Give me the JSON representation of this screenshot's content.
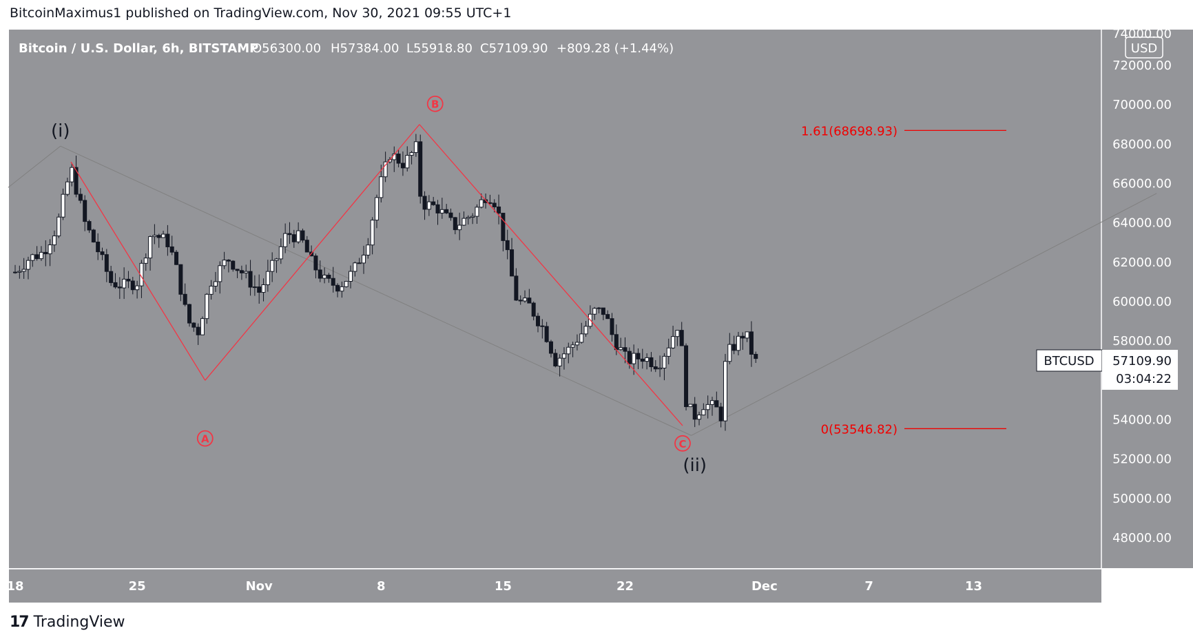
{
  "header": {
    "published": "BitcoinMaximus1 published on TradingView.com, Nov 30, 2021 09:55 UTC+1"
  },
  "footer": {
    "logo_mark": "17",
    "brand": "TradingView"
  },
  "legend": {
    "symbol": "Bitcoin / U.S. Dollar, 6h, BITSTAMP",
    "open": "O56300.00",
    "high": "H57384.00",
    "low": "L55918.80",
    "close": "C57109.90",
    "change": "+809.28 (+1.44%)"
  },
  "price_axis": {
    "currency": "USD",
    "top_label": "74000.00"
  },
  "price_tag": {
    "symbol": "BTCUSD",
    "price": "57109.90",
    "countdown": "03:04:22"
  },
  "colors": {
    "background": "#949599",
    "candle": "#131722",
    "wave": "#f23645",
    "fib": "#f00000",
    "trend": "#808080"
  },
  "chart_data": {
    "type": "candlestick",
    "instrument": "Bitcoin / U.S. Dollar, 6h, BITSTAMP",
    "ylim": [
      46300,
      74000
    ],
    "y_ticks": [
      48000,
      50000,
      52000,
      54000,
      56000,
      58000,
      60000,
      62000,
      64000,
      66000,
      68000,
      70000,
      72000
    ],
    "x_ticks": [
      {
        "label": "18",
        "day": 18
      },
      {
        "label": "25",
        "day": 25
      },
      {
        "label": "Nov",
        "day": 32
      },
      {
        "label": "8",
        "day": 39
      },
      {
        "label": "15",
        "day": 46
      },
      {
        "label": "22",
        "day": 53
      },
      {
        "label": "Dec",
        "day": 61
      },
      {
        "label": "7",
        "day": 67
      },
      {
        "label": "13",
        "day": 73
      }
    ],
    "price_path": [
      [
        18.0,
        61500
      ],
      [
        18.8,
        62200
      ],
      [
        19.6,
        62500
      ],
      [
        20.4,
        63800
      ],
      [
        21.2,
        66800
      ],
      [
        22.0,
        64000
      ],
      [
        22.8,
        62500
      ],
      [
        23.5,
        61000
      ],
      [
        24.2,
        60800
      ],
      [
        25.0,
        61000
      ],
      [
        25.8,
        63500
      ],
      [
        26.8,
        63000
      ],
      [
        27.3,
        61500
      ],
      [
        27.9,
        59000
      ],
      [
        28.5,
        58500
      ],
      [
        29.2,
        61000
      ],
      [
        30.2,
        62200
      ],
      [
        31.0,
        61500
      ],
      [
        32.0,
        60500
      ],
      [
        32.9,
        62000
      ],
      [
        33.6,
        63500
      ],
      [
        34.4,
        63200
      ],
      [
        35.0,
        62000
      ],
      [
        35.8,
        61000
      ],
      [
        36.6,
        60800
      ],
      [
        37.4,
        61500
      ],
      [
        38.2,
        63000
      ],
      [
        38.8,
        65500
      ],
      [
        39.5,
        67500
      ],
      [
        40.3,
        67000
      ],
      [
        41.0,
        67800
      ],
      [
        41.3,
        65000
      ],
      [
        42.2,
        64800
      ],
      [
        43.2,
        63800
      ],
      [
        44.3,
        64500
      ],
      [
        45.1,
        65500
      ],
      [
        45.6,
        65000
      ],
      [
        46.2,
        62500
      ],
      [
        46.8,
        60000
      ],
      [
        47.5,
        59800
      ],
      [
        48.4,
        58500
      ],
      [
        49.0,
        57000
      ],
      [
        49.8,
        57600
      ],
      [
        50.6,
        58500
      ],
      [
        51.2,
        59500
      ],
      [
        51.8,
        59500
      ],
      [
        52.3,
        58200
      ],
      [
        53.1,
        57000
      ],
      [
        54.0,
        57200
      ],
      [
        54.9,
        56800
      ],
      [
        55.6,
        58000
      ],
      [
        56.1,
        59000
      ],
      [
        56.5,
        55000
      ],
      [
        56.9,
        54100
      ],
      [
        57.5,
        54800
      ],
      [
        58.2,
        54600
      ],
      [
        58.5,
        54200
      ],
      [
        58.8,
        57300
      ],
      [
        59.3,
        57800
      ],
      [
        59.9,
        58500
      ],
      [
        60.1,
        57800
      ],
      [
        60.4,
        57110
      ]
    ],
    "last_price": 57109.9,
    "annotations": [
      {
        "text": "(i)",
        "day": 20.6,
        "price": 68700,
        "color": "black"
      },
      {
        "text": "A",
        "day": 28.9,
        "price": 53050,
        "color": "red",
        "circled": true
      },
      {
        "text": "B",
        "day": 42.1,
        "price": 70050,
        "color": "red",
        "circled": true
      },
      {
        "text": "C",
        "day": 56.3,
        "price": 52800,
        "color": "red",
        "circled": true
      },
      {
        "text": "(ii)",
        "day": 57.0,
        "price": 51700,
        "color": "black"
      }
    ],
    "wave_lines": [
      {
        "from": {
          "day": 21.2,
          "price": 67100
        },
        "to": {
          "day": 28.9,
          "price": 56000
        }
      },
      {
        "from": {
          "day": 28.9,
          "price": 56000
        },
        "to": {
          "day": 41.2,
          "price": 69000
        }
      },
      {
        "from": {
          "day": 41.2,
          "price": 69000
        },
        "to": {
          "day": 56.3,
          "price": 53700
        }
      }
    ],
    "trend_lines": [
      {
        "from": {
          "day": 17.6,
          "price": 65800
        },
        "to": {
          "day": 20.6,
          "price": 67900
        }
      },
      {
        "from": {
          "day": 20.6,
          "price": 67900
        },
        "to": {
          "day": 56.8,
          "price": 53200
        }
      },
      {
        "from": {
          "day": 56.8,
          "price": 53200
        },
        "to": {
          "day": 83.5,
          "price": 65500
        }
      }
    ],
    "fib_levels": [
      {
        "ratio_label": "1.61",
        "price": 68698.93,
        "label": "1.61(68698.93)"
      },
      {
        "ratio_label": "0",
        "price": 53546.82,
        "label": "0(53546.82)"
      }
    ]
  }
}
